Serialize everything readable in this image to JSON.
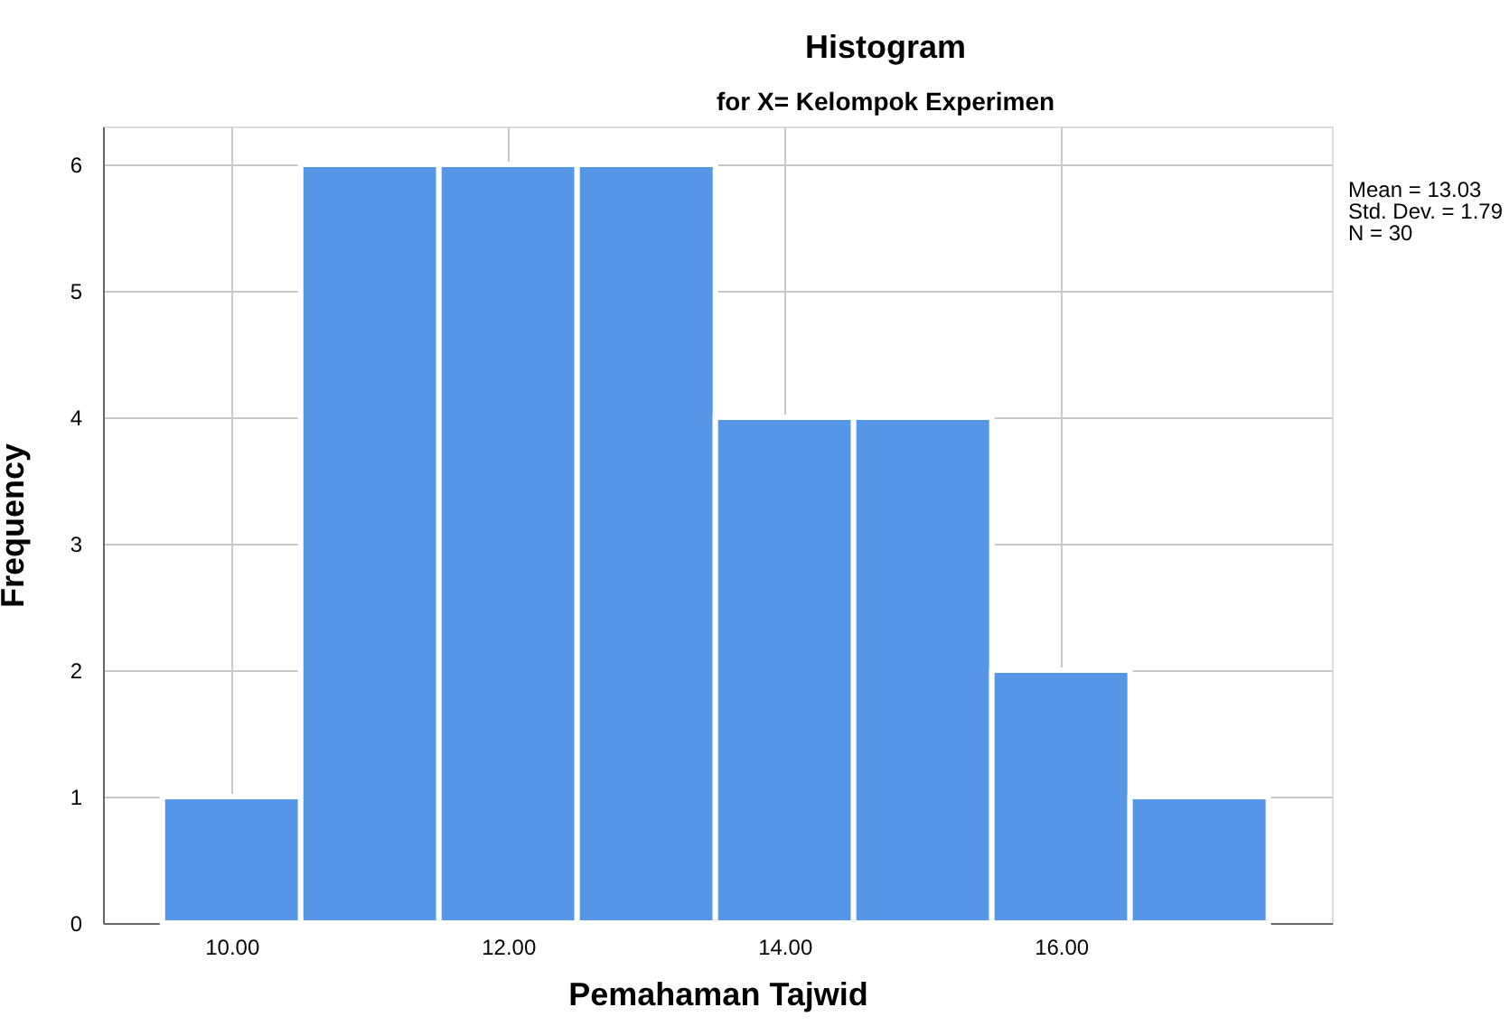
{
  "chart_data": {
    "type": "histogram",
    "title": "Histogram",
    "subtitle": "for X= Kelompok Experimen",
    "xlabel": "Pemahaman Tajwid",
    "ylabel": "Frequency",
    "bins": [
      9.5,
      10.5,
      11.5,
      12.5,
      13.5,
      14.5,
      15.5,
      16.5,
      17.5
    ],
    "values": [
      1,
      6,
      6,
      6,
      4,
      4,
      2,
      1
    ],
    "color": "#5596e6",
    "xlim": [
      9.07,
      17.96
    ],
    "xticks": [
      {
        "value": 10,
        "label": "10.00"
      },
      {
        "value": 12,
        "label": "12.00"
      },
      {
        "value": 14,
        "label": "14.00"
      },
      {
        "value": 16,
        "label": "16.00"
      }
    ],
    "ylim": [
      0,
      6.3
    ],
    "yticks": [
      0,
      1,
      2,
      3,
      4,
      5,
      6
    ],
    "grid": true,
    "annotations": [
      "Mean = 13.03",
      "Std. Dev. = 1.79",
      "N = 30"
    ]
  }
}
